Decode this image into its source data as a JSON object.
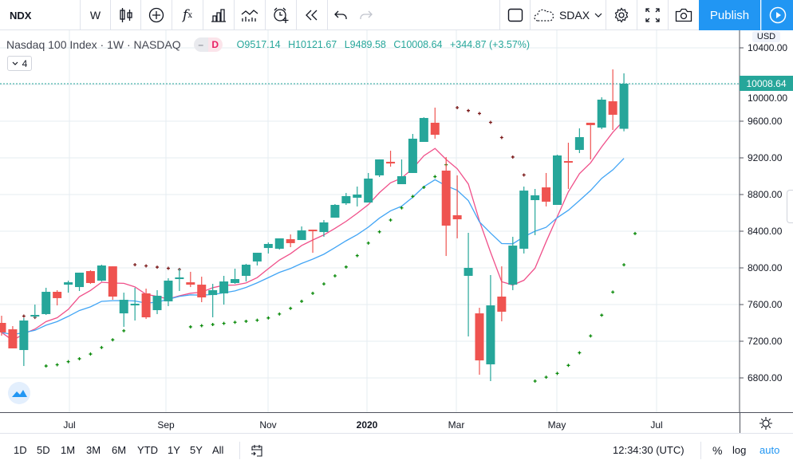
{
  "toolbar": {
    "symbol": "NDX",
    "interval": "W",
    "icons": [
      "candles-icon",
      "add-compare-icon",
      "indicators-fx-icon",
      "templates-icon",
      "chart-type-icon",
      "alert-icon",
      "replay-icon",
      "undo-icon",
      "redo-icon"
    ],
    "layout_name": "SDAX",
    "publish_label": "Publish"
  },
  "legend": {
    "title": "Nasdaq 100 Index · 1W · NASDAQ",
    "pill_letter": "D",
    "open": "O9517.14",
    "high": "H10121.67",
    "low": "L9489.58",
    "close": "C10008.64",
    "change": "+344.87 (+3.57%)",
    "indicators_count": "4"
  },
  "price_axis": {
    "currency": "USD",
    "ticks": [
      "10400.00",
      "10000.00",
      "9600.00",
      "9200.00",
      "8800.00",
      "8400.00",
      "8000.00",
      "7600.00",
      "7200.00",
      "6800.00"
    ],
    "last_price": "10008.64"
  },
  "time_axis": {
    "labels": [
      "Jul",
      "Sep",
      "Nov",
      "2020",
      "Mar",
      "May",
      "Jul"
    ]
  },
  "bottom_bar": {
    "ranges": [
      "1D",
      "5D",
      "1M",
      "3M",
      "6M",
      "YTD",
      "1Y",
      "5Y",
      "All"
    ],
    "clock": "12:34:30 (UTC)",
    "percent": "%",
    "log": "log",
    "auto": "auto"
  },
  "colors": {
    "up": "#26a69a",
    "down": "#ef5350",
    "ma_fast": "#f0508a",
    "ma_slow": "#42a5f5",
    "sar_above": "#7b1a1a",
    "sar_below": "#0a8a0a",
    "accent": "#2196f3"
  },
  "chart_data": {
    "type": "candlestick",
    "symbol": "NDX",
    "interval": "1W",
    "ylim": [
      6600,
      10500
    ],
    "grid": true,
    "candles": [
      [
        7400,
        7478,
        7261,
        7296
      ],
      [
        7330,
        7365,
        7122,
        7122
      ],
      [
        7104,
        7452,
        6930,
        7426
      ],
      [
        7470,
        7600,
        7452,
        7487
      ],
      [
        7496,
        7783,
        7487,
        7739
      ],
      [
        7739,
        7757,
        7591,
        7670
      ],
      [
        7817,
        7861,
        7730,
        7843
      ],
      [
        7791,
        7948,
        7748,
        7948
      ],
      [
        7965,
        7974,
        7826,
        7835
      ],
      [
        7861,
        8035,
        7852,
        8026
      ],
      [
        8017,
        8017,
        7652,
        7687
      ],
      [
        7504,
        7730,
        7357,
        7652
      ],
      [
        7591,
        7783,
        7426,
        7609
      ],
      [
        7722,
        7774,
        7443,
        7461
      ],
      [
        7539,
        7757,
        7496,
        7696
      ],
      [
        7635,
        7887,
        7583,
        7861
      ],
      [
        7878,
        7991,
        7748,
        7896
      ],
      [
        7843,
        7957,
        7791,
        7817
      ],
      [
        7817,
        7904,
        7626,
        7678
      ],
      [
        7704,
        7826,
        7461,
        7757
      ],
      [
        7722,
        7913,
        7600,
        7852
      ],
      [
        7835,
        7991,
        7826,
        7878
      ],
      [
        7913,
        8044,
        7852,
        8035
      ],
      [
        8070,
        8165,
        8026,
        8165
      ],
      [
        8217,
        8278,
        8157,
        8261
      ],
      [
        8209,
        8322,
        8200,
        8322
      ],
      [
        8313,
        8365,
        8226,
        8270
      ],
      [
        8304,
        8452,
        8304,
        8409
      ],
      [
        8417,
        8417,
        8165,
        8400
      ],
      [
        8391,
        8522,
        8339,
        8496
      ],
      [
        8548,
        8696,
        8548,
        8687
      ],
      [
        8704,
        8817,
        8687,
        8783
      ],
      [
        8765,
        8887,
        8670,
        8800
      ],
      [
        8713,
        9035,
        8713,
        8974
      ],
      [
        9009,
        9183,
        8991,
        9183
      ],
      [
        9157,
        9278,
        9104,
        9139
      ],
      [
        8913,
        9183,
        8913,
        9000
      ],
      [
        9035,
        9461,
        9035,
        9409
      ],
      [
        9374,
        9643,
        9374,
        9635
      ],
      [
        9583,
        9748,
        9409,
        9452
      ],
      [
        9061,
        9209,
        8130,
        8461
      ],
      [
        8574,
        9009,
        8322,
        8530
      ],
      [
        7913,
        8383,
        7252,
        8000
      ],
      [
        7504,
        7565,
        6835,
        6991
      ],
      [
        6948,
        7922,
        6765,
        7591
      ],
      [
        7687,
        8017,
        7417,
        7522
      ],
      [
        7817,
        8339,
        7757,
        8243
      ],
      [
        8209,
        8887,
        8157,
        8843
      ],
      [
        8739,
        8861,
        8357,
        8791
      ],
      [
        8878,
        9035,
        8670,
        8722
      ],
      [
        8687,
        9235,
        8687,
        9226
      ],
      [
        9165,
        9365,
        8861,
        9157
      ],
      [
        9287,
        9522,
        9252,
        9426
      ],
      [
        9583,
        9583,
        9183,
        9557
      ],
      [
        9530,
        9861,
        9513,
        9835
      ],
      [
        9817,
        10165,
        9504,
        9670
      ],
      [
        9517.14,
        10121.67,
        9489.58,
        10008.64
      ]
    ]
  }
}
